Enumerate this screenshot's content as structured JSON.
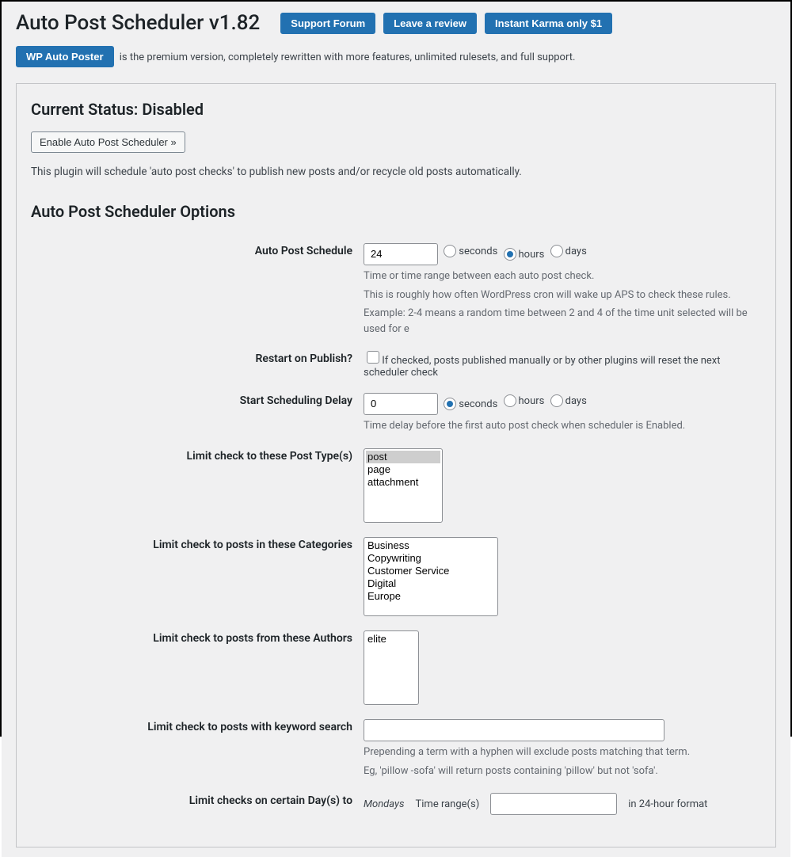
{
  "header": {
    "title": "Auto Post Scheduler v1.82",
    "buttons": {
      "support": "Support Forum",
      "review": "Leave a review",
      "karma": "Instant Karma only $1"
    }
  },
  "promo": {
    "button": "WP Auto Poster",
    "text": " is the premium version, completely rewritten with more features, unlimited rulesets, and full support."
  },
  "status": {
    "title": "Current Status: Disabled",
    "enable_button": "Enable Auto Post Scheduler »",
    "description": "This plugin will schedule 'auto post checks' to publish new posts and/or recycle old posts automatically."
  },
  "options_title": "Auto Post Scheduler Options",
  "schedule": {
    "label": "Auto Post Schedule",
    "value": "24",
    "unit_selected": "hours",
    "unit_seconds": "seconds",
    "unit_hours": "hours",
    "unit_days": "days",
    "help1": "Time or time range between each auto post check.",
    "help2": "This is roughly how often WordPress cron will wake up APS to check these rules.",
    "help3": "Example: 2-4 means a random time between 2 and 4 of the time unit selected will be used for e"
  },
  "restart": {
    "label": "Restart on Publish?",
    "help": "If checked, posts published manually or by other plugins will reset the next scheduler check"
  },
  "delay": {
    "label": "Start Scheduling Delay",
    "value": "0",
    "unit_selected": "seconds",
    "unit_seconds": "seconds",
    "unit_hours": "hours",
    "unit_days": "days",
    "help": "Time delay before the first auto post check when scheduler is Enabled."
  },
  "post_types": {
    "label": "Limit check to these Post Type(s)",
    "options": [
      "post",
      "page",
      "attachment"
    ],
    "selected": [
      "post"
    ]
  },
  "categories": {
    "label": "Limit check to posts in these Categories",
    "options": [
      "Business",
      "Copywriting",
      "Customer Service",
      "Digital",
      "Europe"
    ]
  },
  "authors": {
    "label": "Limit check to posts from these Authors",
    "options": [
      "elite"
    ]
  },
  "keyword": {
    "label": "Limit check to posts with keyword search",
    "value": "",
    "help1": "Prepending a term with a hyphen will exclude posts matching that term.",
    "help2": "Eg, 'pillow -sofa' will return posts containing 'pillow' but not 'sofa'."
  },
  "days": {
    "label": "Limit checks on certain Day(s) to",
    "day": "Mondays",
    "time_range_label": "Time range(s)",
    "time_range_value": "",
    "format": "in 24-hour format"
  },
  "colors": {
    "primary": "#2271b1",
    "bg": "#f0f0f1",
    "border": "#c3c4c7",
    "text": "#1d2327",
    "help": "#646970"
  }
}
